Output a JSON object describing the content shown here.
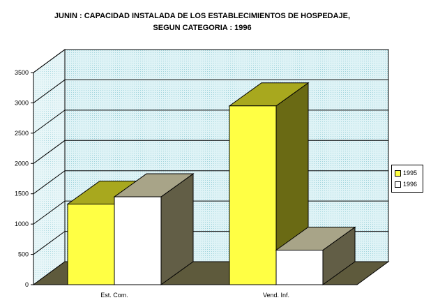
{
  "title_line1": "JUNIN : CAPACIDAD INSTALADA DE LOS ESTABLECIMIENTOS DE HOSPEDAJE,",
  "title_line2": "SEGUN CATEGORIA : 1996",
  "chart_data": {
    "type": "bar",
    "title": "JUNIN : CAPACIDAD INSTALADA DE LOS ESTABLECIMIENTOS DE HOSPEDAJE, SEGUN CATEGORIA : 1996",
    "categories": [
      "Est. Com.",
      "Vend. Inf."
    ],
    "series": [
      {
        "name": "1995",
        "values": [
          1330,
          2950
        ],
        "color": "#ffff44"
      },
      {
        "name": "1996",
        "values": [
          1450,
          570
        ],
        "color": "#ffffff"
      }
    ],
    "ylim": [
      0,
      3500
    ],
    "yticks": [
      0,
      500,
      1000,
      1500,
      2000,
      2500,
      3000,
      3500
    ],
    "xlabel": "",
    "ylabel": "",
    "grid": true,
    "legend_position": "right"
  }
}
